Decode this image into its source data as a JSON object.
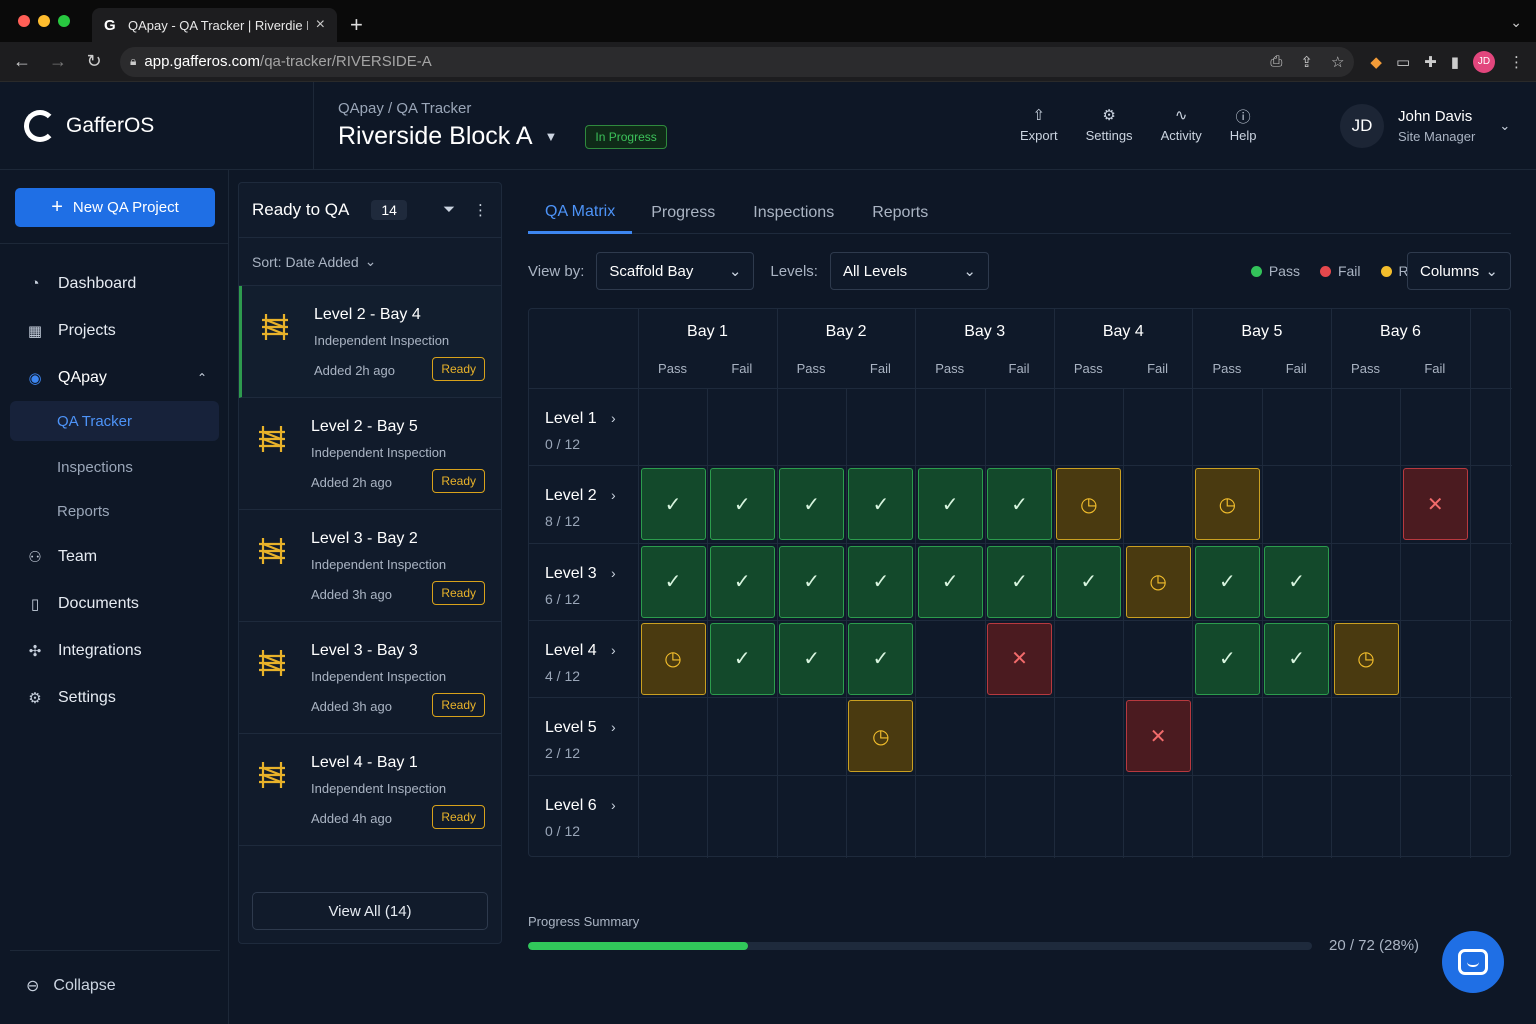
{
  "browser": {
    "tab_title": "QApay - QA Tracker | Riverdie B",
    "url_domain": "app.gafferos.com",
    "url_path": "/qa-tracker/RIVERSIDE-A",
    "profile_initials": "JD"
  },
  "brand": {
    "name": "GafferOS"
  },
  "header": {
    "breadcrumb": "QApay / QA Tracker",
    "title": "Riverside Block A",
    "status": "In Progress",
    "actions": [
      {
        "label": "Export",
        "icon": "export-icon"
      },
      {
        "label": "Settings",
        "icon": "gear-icon"
      },
      {
        "label": "Activity",
        "icon": "activity-icon"
      },
      {
        "label": "Help",
        "icon": "help-icon"
      }
    ],
    "user": {
      "initials": "JD",
      "name": "John Davis",
      "role": "Site Manager"
    }
  },
  "sidebar": {
    "new_button": "New QA Project",
    "items": [
      {
        "label": "Dashboard",
        "icon": "dashboard-icon"
      },
      {
        "label": "Projects",
        "icon": "calendar-icon"
      },
      {
        "label": "QApay",
        "icon": "target-icon"
      }
    ],
    "sub_items": [
      "QA Tracker",
      "Inspections",
      "Reports"
    ],
    "items_after": [
      {
        "label": "Team",
        "icon": "team-icon"
      },
      {
        "label": "Documents",
        "icon": "document-icon"
      },
      {
        "label": "Integrations",
        "icon": "puzzle-icon"
      },
      {
        "label": "Settings",
        "icon": "gear-icon"
      }
    ],
    "collapse": "Collapse"
  },
  "ready_panel": {
    "title": "Ready to QA",
    "count": "14",
    "sort": "Sort: Date Added",
    "items": [
      {
        "name": "Level 2 - Bay 4",
        "sub": "Independent Inspection",
        "added": "Added 2h ago",
        "badge": "Ready"
      },
      {
        "name": "Level 2 - Bay 5",
        "sub": "Independent Inspection",
        "added": "Added 2h ago",
        "badge": "Ready"
      },
      {
        "name": "Level 3 - Bay 2",
        "sub": "Independent Inspection",
        "added": "Added 3h ago",
        "badge": "Ready"
      },
      {
        "name": "Level 3 - Bay 3",
        "sub": "Independent Inspection",
        "added": "Added 3h ago",
        "badge": "Ready"
      },
      {
        "name": "Level 4 - Bay 1",
        "sub": "Independent Inspection",
        "added": "Added 4h ago",
        "badge": "Ready"
      }
    ],
    "view_all": "View All (14)"
  },
  "tabs": [
    "QA Matrix",
    "Progress",
    "Inspections",
    "Reports"
  ],
  "filters": {
    "view_by_label": "View by:",
    "view_by_value": "Scaffold Bay",
    "levels_label": "Levels:",
    "levels_value": "All Levels",
    "legend": [
      {
        "label": "Pass",
        "color": "#33c35a"
      },
      {
        "label": "Fail",
        "color": "#e5484d"
      },
      {
        "label": "Ready",
        "color": "#f3be2c"
      }
    ],
    "columns_button": "Columns"
  },
  "matrix": {
    "bays": [
      "Bay 1",
      "Bay 2",
      "Bay 3",
      "Bay 4",
      "Bay 5",
      "Bay 6"
    ],
    "sub_columns": [
      "Pass",
      "Fail"
    ],
    "levels": [
      {
        "name": "Level 1",
        "count": "0 / 12",
        "cells": [
          "",
          "",
          "",
          "",
          "",
          "",
          "",
          "",
          "",
          "",
          "",
          ""
        ]
      },
      {
        "name": "Level 2",
        "count": "8 / 12",
        "cells": [
          "pass",
          "pass",
          "pass",
          "pass",
          "pass",
          "pass",
          "ready",
          "",
          "ready",
          "",
          "",
          "fail"
        ]
      },
      {
        "name": "Level 3",
        "count": "6 / 12",
        "cells": [
          "pass",
          "pass",
          "pass",
          "pass",
          "pass",
          "pass",
          "pass",
          "ready",
          "pass",
          "pass",
          "",
          ""
        ]
      },
      {
        "name": "Level 4",
        "count": "4 / 12",
        "cells": [
          "ready",
          "pass",
          "pass",
          "pass",
          "",
          "fail",
          "",
          "",
          "pass",
          "pass",
          "ready",
          ""
        ]
      },
      {
        "name": "Level 5",
        "count": "2 / 12",
        "cells": [
          "",
          "",
          "",
          "ready",
          "",
          "",
          "",
          "fail",
          "",
          "",
          "",
          ""
        ]
      },
      {
        "name": "Level 6",
        "count": "0 / 12",
        "cells": [
          "",
          "",
          "",
          "",
          "",
          "",
          "",
          "",
          "",
          "",
          "",
          ""
        ]
      }
    ]
  },
  "progress": {
    "label": "Progress Summary",
    "text": "20 / 72 (28%)",
    "fraction": 0.28
  }
}
